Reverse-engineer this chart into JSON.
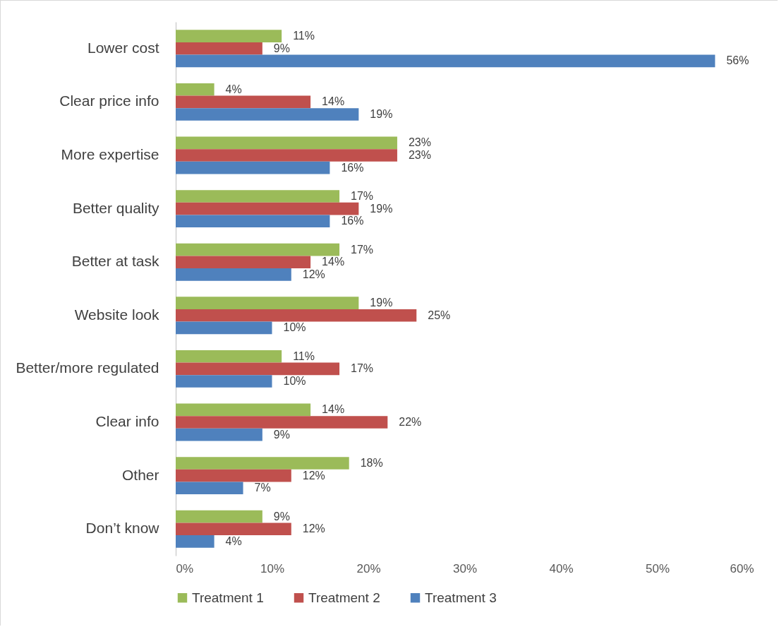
{
  "chart_data": {
    "type": "bar",
    "orientation": "horizontal",
    "categories": [
      "Lower cost",
      "Clear price info",
      "More expertise",
      "Better quality",
      "Better at task",
      "Website look",
      "Better/more regulated",
      "Clear info",
      "Other",
      "Don’t know"
    ],
    "series": [
      {
        "name": "Treatment 1",
        "color": "#9bbb59",
        "values": [
          11,
          4,
          23,
          17,
          17,
          19,
          11,
          14,
          18,
          9
        ],
        "value_labels": [
          "11%",
          "4%",
          "23%",
          "17%",
          "17%",
          "19%",
          "11%",
          "14%",
          "18%",
          "9%"
        ]
      },
      {
        "name": "Treatment 2",
        "color": "#c0504d",
        "values": [
          9,
          14,
          23,
          19,
          14,
          25,
          17,
          22,
          12,
          12
        ],
        "value_labels": [
          "9%",
          "14%",
          "23%",
          "19%",
          "14%",
          "25%",
          "17%",
          "22%",
          "12%",
          "12%"
        ]
      },
      {
        "name": "Treatment 3",
        "color": "#4f81bd",
        "values": [
          56,
          19,
          16,
          16,
          12,
          10,
          10,
          9,
          7,
          4
        ],
        "value_labels": [
          "56%",
          "19%",
          "16%",
          "16%",
          "12%",
          "10%",
          "10%",
          "9%",
          "7%",
          "4%"
        ]
      }
    ],
    "xlim": [
      0,
      60
    ],
    "xticks": [
      {
        "value": 0,
        "label": "0%"
      },
      {
        "value": 10,
        "label": "10%"
      },
      {
        "value": 20,
        "label": "20%"
      },
      {
        "value": 30,
        "label": "30%"
      },
      {
        "value": 40,
        "label": "40%"
      },
      {
        "value": 50,
        "label": "50%"
      },
      {
        "value": 60,
        "label": "60%"
      }
    ],
    "grid": false,
    "legend": "bottom"
  }
}
